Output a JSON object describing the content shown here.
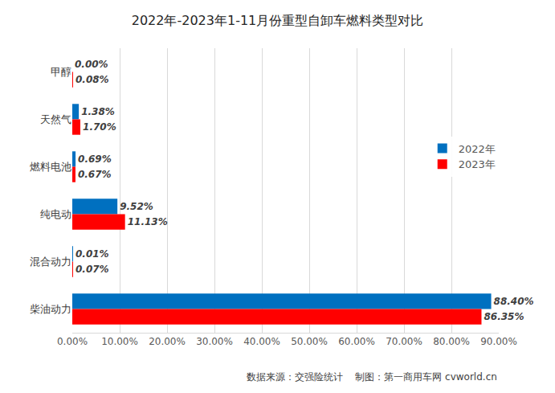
{
  "chart_data": {
    "type": "bar",
    "orientation": "horizontal",
    "title": "2022年-2023年1-11月份重型自卸车燃料类型对比",
    "categories": [
      "甲醇",
      "天然气",
      "燃料电池",
      "纯电动",
      "混合动力",
      "柴油动力"
    ],
    "series": [
      {
        "name": "2022年",
        "color": "#0070c0",
        "values": [
          0.0,
          1.38,
          0.69,
          9.52,
          0.01,
          88.4
        ],
        "value_labels": [
          "0.00%",
          "1.38%",
          "0.69%",
          "9.52%",
          "0.01%",
          "88.40%"
        ]
      },
      {
        "name": "2023年",
        "color": "#ff0000",
        "values": [
          0.08,
          1.7,
          0.67,
          11.13,
          0.07,
          86.35
        ],
        "value_labels": [
          "0.08%",
          "1.70%",
          "0.67%",
          "11.13%",
          "0.07%",
          "86.35%"
        ]
      }
    ],
    "xlim": [
      0,
      90
    ],
    "xticks": [
      {
        "value": 0,
        "label": "0.00%"
      },
      {
        "value": 10,
        "label": "10.00%"
      },
      {
        "value": 20,
        "label": "20.00%"
      },
      {
        "value": 30,
        "label": "30.00%"
      },
      {
        "value": 40,
        "label": "40.00%"
      },
      {
        "value": 50,
        "label": "50.00%"
      },
      {
        "value": 60,
        "label": "60.00%"
      },
      {
        "value": 70,
        "label": "70.00%"
      },
      {
        "value": 80,
        "label": "80.00%"
      },
      {
        "value": 90,
        "label": "90.00%"
      }
    ],
    "grid": true,
    "legend": "right",
    "data_labels": true,
    "annotations": [
      "数据来源：交强险统计    制图：第一商用车网 cvworld.cn"
    ]
  }
}
